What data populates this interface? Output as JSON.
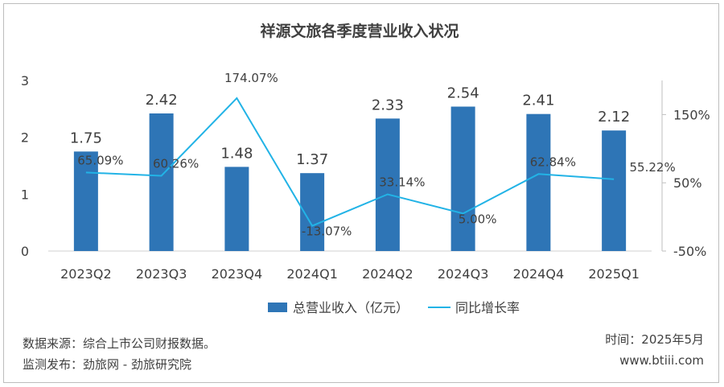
{
  "footer": {
    "source": "数据来源：综合上市公司财报数据。",
    "publisher": "监测发布：劲旅网 - 劲旅研究院",
    "time": "时间：2025年5月",
    "site": "www.btiii.com"
  },
  "colors": {
    "bar": "#2e75b6",
    "line": "#22b3e6"
  },
  "chart_data": {
    "type": "bar",
    "title": "祥源文旅各季度营业收入状况",
    "categories": [
      "2023Q2",
      "2023Q3",
      "2023Q4",
      "2024Q1",
      "2024Q2",
      "2024Q3",
      "2024Q4",
      "2025Q1"
    ],
    "series": [
      {
        "name": "总营业收入（亿元）",
        "type": "bar",
        "axis": "left",
        "values": [
          1.75,
          2.42,
          1.48,
          1.37,
          2.33,
          2.54,
          2.41,
          2.12
        ],
        "labels": [
          "1.75",
          "2.42",
          "1.48",
          "1.37",
          "2.33",
          "2.54",
          "2.41",
          "2.12"
        ]
      },
      {
        "name": "同比增长率",
        "type": "line",
        "axis": "right",
        "values": [
          65.09,
          60.26,
          174.07,
          -13.07,
          33.14,
          5.0,
          62.84,
          55.22
        ],
        "labels": [
          "65.09%",
          "60.26%",
          "174.07%",
          "-13.07%",
          "33.14%",
          "5.00%",
          "62.84%",
          "55.22%"
        ]
      }
    ],
    "left_axis": {
      "ylim": [
        0,
        3
      ],
      "ticks": [
        "0",
        "1",
        "2",
        "3"
      ]
    },
    "right_axis": {
      "ylim": [
        -50,
        200
      ],
      "ticks": [
        "-50%",
        "50%",
        "150%"
      ],
      "tick_values": [
        -50,
        50,
        150
      ]
    },
    "grid": false,
    "legend_position": "bottom"
  }
}
